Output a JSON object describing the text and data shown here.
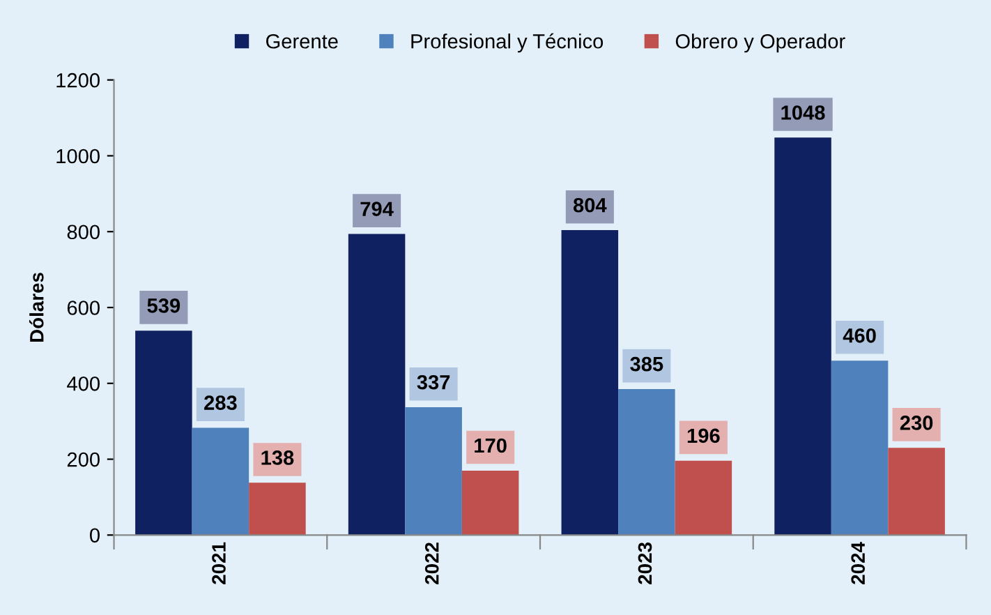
{
  "chart_data": {
    "type": "bar",
    "ylabel": "Dólares",
    "categories": [
      "2021",
      "2022",
      "2023",
      "2024"
    ],
    "series": [
      {
        "name": "Gerente",
        "color": "#0f2160",
        "values": [
          539,
          794,
          804,
          1048
        ]
      },
      {
        "name": "Profesional y Técnico",
        "color": "#4f81bd",
        "values": [
          283,
          337,
          385,
          460
        ]
      },
      {
        "name": "Obrero y Operador",
        "color": "#c0504d",
        "values": [
          138,
          170,
          196,
          230
        ]
      }
    ],
    "ylim": [
      0,
      1200
    ],
    "yticks": [
      0,
      200,
      400,
      600,
      800,
      1000,
      1200
    ],
    "grid": false,
    "legend": "top",
    "data_labels": true
  }
}
